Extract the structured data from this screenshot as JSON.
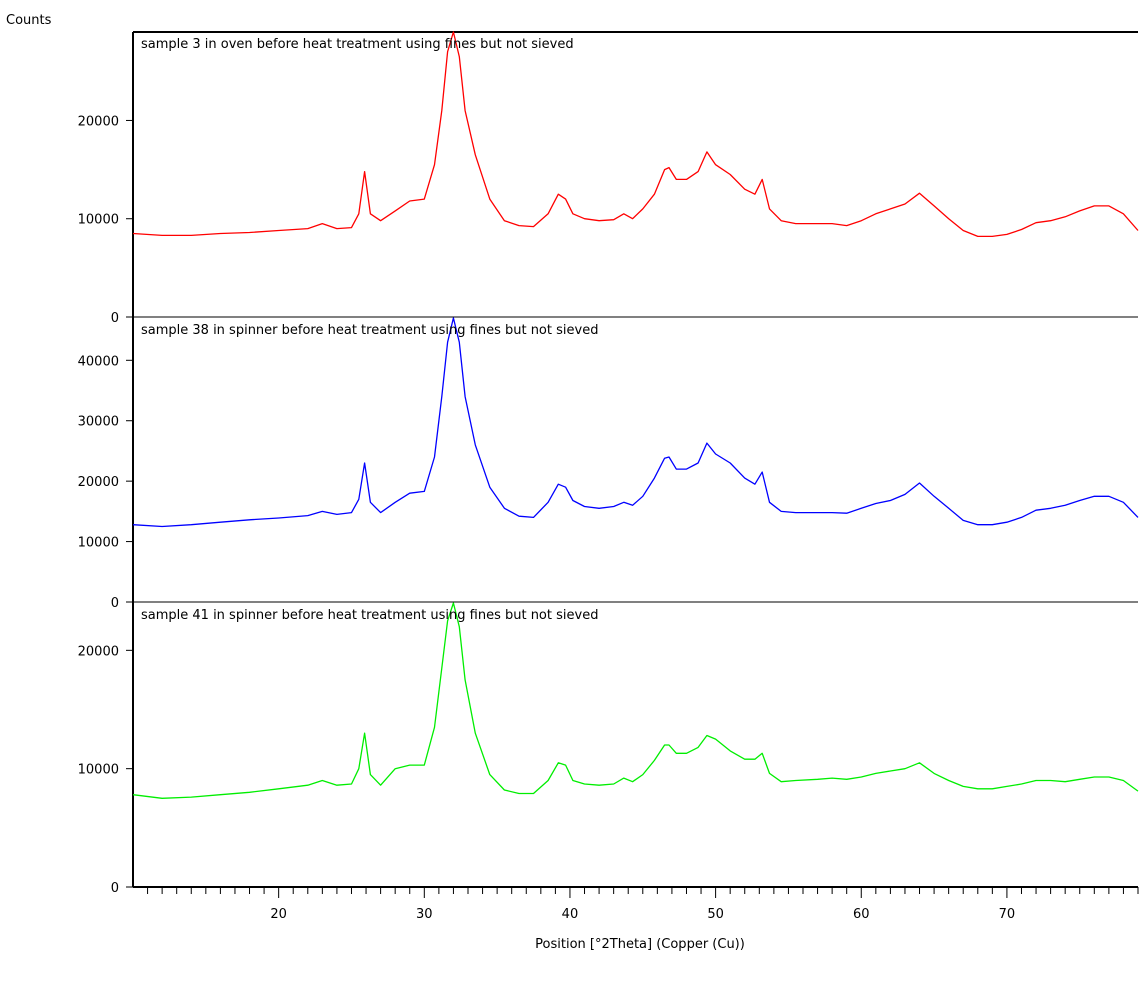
{
  "chart_data": {
    "type": "line",
    "ylabel": "Counts",
    "xlabel": "Position [°2Theta] (Copper (Cu))",
    "x_range": [
      10,
      79
    ],
    "x_ticks": [
      20,
      30,
      40,
      50,
      60,
      70
    ],
    "series": [
      {
        "name": "sample 3 in oven before heat treatment using fines but not sieved",
        "color": "#ff0000",
        "ylim": [
          0,
          29000
        ],
        "y_ticks": [
          0,
          10000,
          20000
        ],
        "x": [
          10,
          12,
          14,
          16,
          18,
          20,
          22,
          23,
          24,
          25,
          25.5,
          25.9,
          26.3,
          27,
          28,
          29,
          30,
          30.7,
          31.2,
          31.6,
          32,
          32.4,
          32.8,
          33.5,
          34.5,
          35.5,
          36.5,
          37.5,
          38.5,
          39.2,
          39.7,
          40.2,
          41,
          42,
          43,
          43.7,
          44.3,
          45,
          45.8,
          46.5,
          46.8,
          47.3,
          48,
          48.8,
          49.4,
          50,
          51,
          52,
          52.7,
          53.2,
          53.7,
          54.5,
          55.5,
          57,
          58,
          59,
          60,
          61,
          62,
          63,
          64,
          65,
          66,
          67,
          68,
          69,
          70,
          71,
          72,
          73,
          74,
          75,
          76,
          77,
          78,
          79
        ],
        "y": [
          8500,
          8300,
          8300,
          8500,
          8600,
          8800,
          9000,
          9500,
          9000,
          9100,
          10500,
          14800,
          10500,
          9800,
          10800,
          11800,
          12000,
          15500,
          21000,
          27000,
          29000,
          26500,
          21000,
          16500,
          12000,
          9800,
          9300,
          9200,
          10500,
          12500,
          12000,
          10500,
          10000,
          9800,
          9900,
          10500,
          10000,
          11000,
          12500,
          15000,
          15200,
          14000,
          14000,
          14800,
          16800,
          15500,
          14500,
          13000,
          12500,
          14000,
          11000,
          9800,
          9500,
          9500,
          9500,
          9300,
          9800,
          10500,
          11000,
          11500,
          12600,
          11300,
          10000,
          8800,
          8200,
          8200,
          8400,
          8900,
          9600,
          9800,
          10200,
          10800,
          11300,
          11300,
          10500,
          8800
        ]
      },
      {
        "name": "sample 38 in spinner before heat treatment using fines but not sieved",
        "color": "#0000ff",
        "ylim": [
          0,
          47000
        ],
        "y_ticks": [
          0,
          10000,
          20000,
          30000,
          40000
        ],
        "x": [
          10,
          12,
          14,
          16,
          18,
          20,
          22,
          23,
          24,
          25,
          25.5,
          25.9,
          26.3,
          27,
          28,
          29,
          30,
          30.7,
          31.2,
          31.6,
          32,
          32.4,
          32.8,
          33.5,
          34.5,
          35.5,
          36.5,
          37.5,
          38.5,
          39.2,
          39.7,
          40.2,
          41,
          42,
          43,
          43.7,
          44.3,
          45,
          45.8,
          46.5,
          46.8,
          47.3,
          48,
          48.8,
          49.4,
          50,
          51,
          52,
          52.7,
          53.2,
          53.7,
          54.5,
          55.5,
          57,
          58,
          59,
          60,
          61,
          62,
          63,
          64,
          65,
          66,
          67,
          68,
          69,
          70,
          71,
          72,
          73,
          74,
          75,
          76,
          77,
          78,
          79
        ],
        "y": [
          12800,
          12500,
          12800,
          13200,
          13600,
          13900,
          14300,
          15000,
          14500,
          14800,
          17000,
          23000,
          16500,
          14800,
          16500,
          18000,
          18300,
          24000,
          34000,
          43000,
          47000,
          43000,
          34000,
          26000,
          19000,
          15500,
          14200,
          14000,
          16500,
          19500,
          19000,
          16800,
          15800,
          15500,
          15800,
          16500,
          16000,
          17500,
          20500,
          23800,
          24000,
          22000,
          22000,
          23000,
          26300,
          24500,
          23000,
          20500,
          19500,
          21500,
          16500,
          15000,
          14800,
          14800,
          14800,
          14700,
          15500,
          16300,
          16800,
          17800,
          19700,
          17500,
          15500,
          13500,
          12800,
          12800,
          13200,
          14000,
          15200,
          15500,
          16000,
          16800,
          17500,
          17500,
          16500,
          14000
        ]
      },
      {
        "name": "sample 41 in spinner before heat treatment using fines but not sieved",
        "color": "#00ee00",
        "ylim": [
          0,
          24000
        ],
        "y_ticks": [
          0,
          10000,
          20000
        ],
        "x": [
          10,
          12,
          14,
          16,
          18,
          20,
          22,
          23,
          24,
          25,
          25.5,
          25.9,
          26.3,
          27,
          28,
          29,
          30,
          30.7,
          31.2,
          31.6,
          32,
          32.4,
          32.8,
          33.5,
          34.5,
          35.5,
          36.5,
          37.5,
          38.5,
          39.2,
          39.7,
          40.2,
          41,
          42,
          43,
          43.7,
          44.3,
          45,
          45.8,
          46.5,
          46.8,
          47.3,
          48,
          48.8,
          49.4,
          50,
          51,
          52,
          52.7,
          53.2,
          53.7,
          54.5,
          55.5,
          57,
          58,
          59,
          60,
          61,
          62,
          63,
          64,
          65,
          66,
          67,
          68,
          69,
          70,
          71,
          72,
          73,
          74,
          75,
          76,
          77,
          78,
          79
        ],
        "y": [
          7800,
          7500,
          7600,
          7800,
          8000,
          8300,
          8600,
          9000,
          8600,
          8700,
          10000,
          13000,
          9500,
          8600,
          10000,
          10300,
          10300,
          13500,
          18500,
          22500,
          24000,
          22000,
          17500,
          13000,
          9500,
          8200,
          7900,
          7900,
          9000,
          10500,
          10300,
          9000,
          8700,
          8600,
          8700,
          9200,
          8900,
          9500,
          10700,
          12000,
          12000,
          11300,
          11300,
          11800,
          12800,
          12500,
          11500,
          10800,
          10800,
          11300,
          9600,
          8900,
          9000,
          9100,
          9200,
          9100,
          9300,
          9600,
          9800,
          10000,
          10500,
          9600,
          9000,
          8500,
          8300,
          8300,
          8500,
          8700,
          9000,
          9000,
          8900,
          9100,
          9300,
          9300,
          9000,
          8100
        ]
      }
    ]
  }
}
